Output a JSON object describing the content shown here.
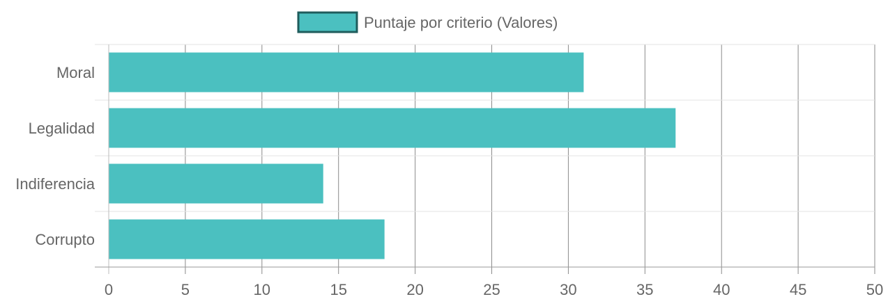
{
  "chart_data": {
    "type": "bar",
    "orientation": "horizontal",
    "categories": [
      "Moral",
      "Legalidad",
      "Indiferencia",
      "Corrupto"
    ],
    "series": [
      {
        "name": "Puntaje por criterio (Valores)",
        "values": [
          31,
          37,
          14,
          18
        ],
        "color": "#4bc0c0",
        "border_color": "#1f5c5c"
      }
    ],
    "xlim": [
      0,
      50
    ],
    "x_ticks": [
      0,
      5,
      10,
      15,
      20,
      25,
      30,
      35,
      40,
      45,
      50
    ],
    "grid": true,
    "legend_position": "top-center"
  }
}
